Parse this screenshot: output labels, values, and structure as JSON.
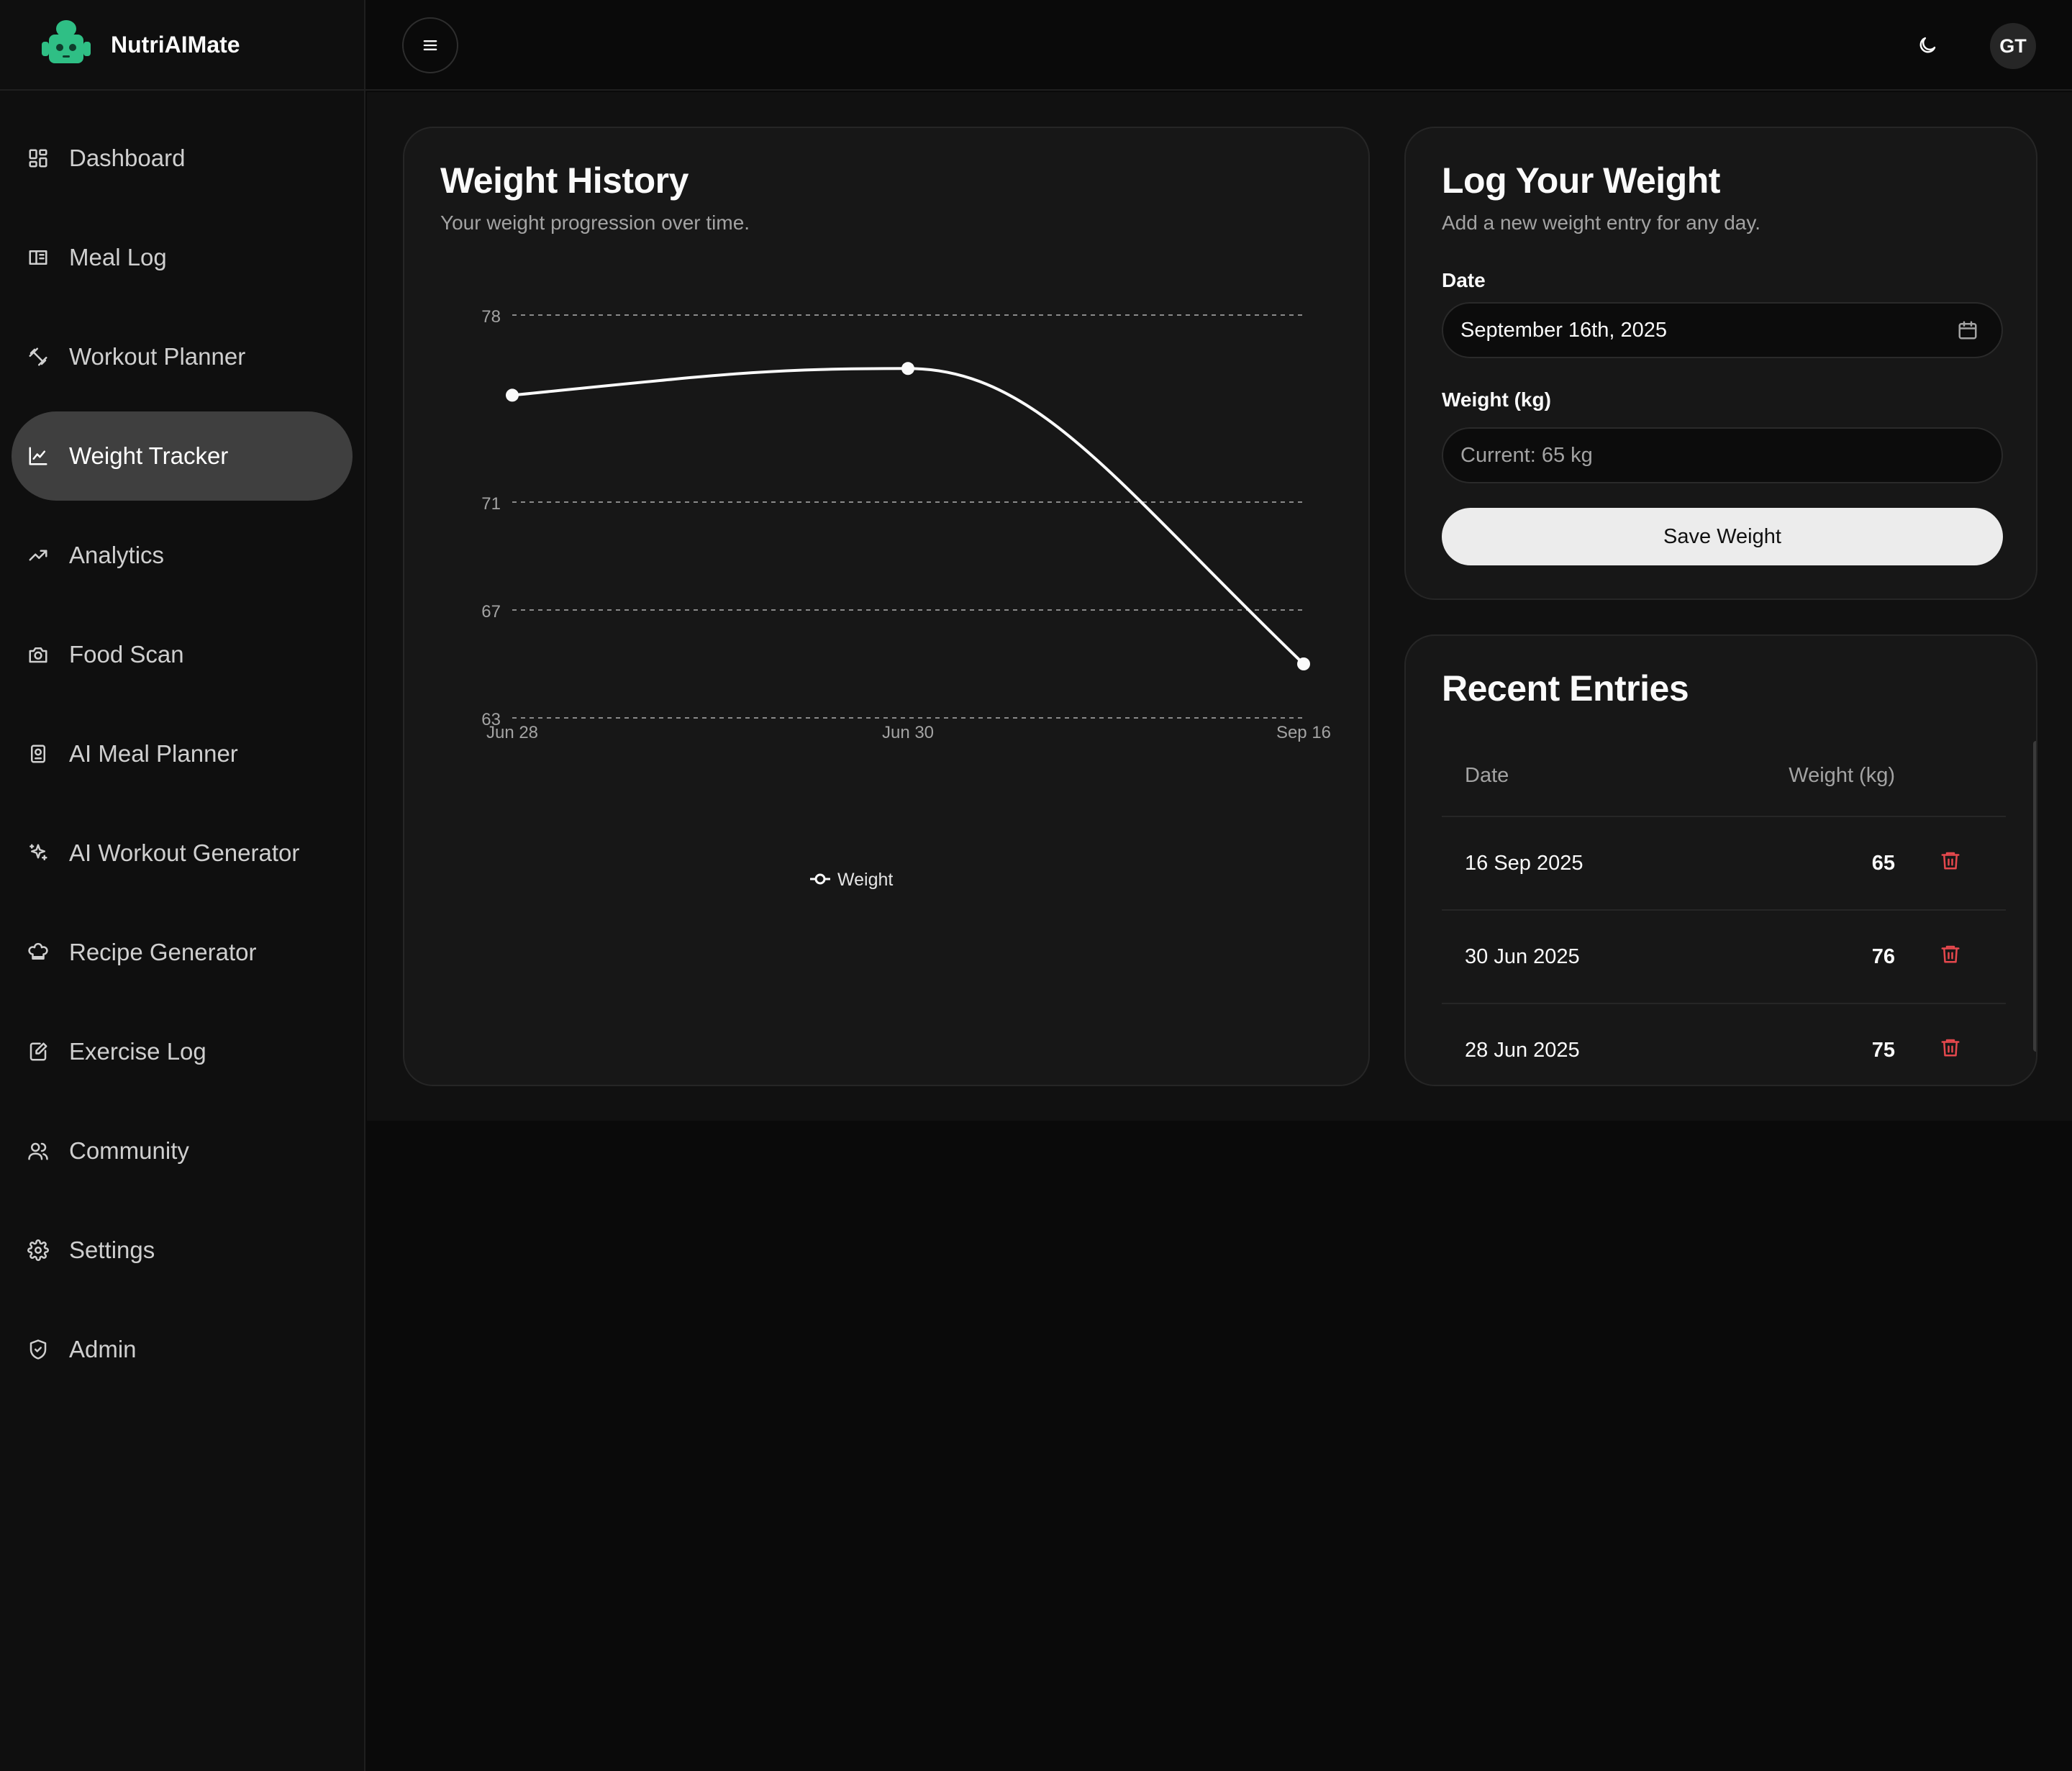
{
  "app": {
    "name": "NutriAIMate"
  },
  "sidebar": {
    "items": [
      {
        "label": "Dashboard",
        "icon": "dashboard-icon"
      },
      {
        "label": "Meal Log",
        "icon": "meal-log-icon"
      },
      {
        "label": "Workout Planner",
        "icon": "dumbbell-icon"
      },
      {
        "label": "Weight Tracker",
        "icon": "line-chart-icon",
        "active": true
      },
      {
        "label": "Analytics",
        "icon": "trending-up-icon"
      },
      {
        "label": "Food Scan",
        "icon": "camera-icon"
      },
      {
        "label": "AI Meal Planner",
        "icon": "meal-plan-icon"
      },
      {
        "label": "AI Workout Generator",
        "icon": "sparkles-icon"
      },
      {
        "label": "Recipe Generator",
        "icon": "chef-hat-icon"
      },
      {
        "label": "Exercise Log",
        "icon": "edit-file-icon"
      },
      {
        "label": "Community",
        "icon": "users-icon"
      },
      {
        "label": "Settings",
        "icon": "gear-icon"
      },
      {
        "label": "Admin",
        "icon": "shield-icon"
      }
    ]
  },
  "topbar": {
    "avatar_initials": "GT"
  },
  "weight_history": {
    "title": "Weight History",
    "subtitle": "Your weight progression over time."
  },
  "chart_data": {
    "type": "line",
    "title": "",
    "xlabel": "",
    "ylabel": "",
    "x": [
      "Jun 28",
      "Jun 30",
      "Sep 16"
    ],
    "series": [
      {
        "name": "Weight",
        "values": [
          75,
          76,
          65
        ]
      }
    ],
    "yticks": [
      63,
      67,
      71,
      78
    ],
    "ylim": [
      63,
      78
    ],
    "grid": "horizontal dashed",
    "legend": "bottom-center",
    "colors": {
      "line": "#fafafa",
      "grid": "#8a8a8a"
    }
  },
  "log_weight": {
    "title": "Log Your Weight",
    "subtitle": "Add a new weight entry for any day.",
    "date_label": "Date",
    "date_value": "September 16th, 2025",
    "weight_label": "Weight (kg)",
    "weight_placeholder": "Current: 65 kg",
    "save_label": "Save Weight"
  },
  "recent_entries": {
    "title": "Recent Entries",
    "columns": [
      "Date",
      "Weight (kg)"
    ],
    "rows": [
      {
        "date": "16 Sep 2025",
        "weight": "65"
      },
      {
        "date": "30 Jun 2025",
        "weight": "76"
      },
      {
        "date": "28 Jun 2025",
        "weight": "75"
      }
    ]
  },
  "colors": {
    "accent_logo": "#2fbf85",
    "delete": "#e5484d",
    "active_nav": "#3f3f3f"
  }
}
